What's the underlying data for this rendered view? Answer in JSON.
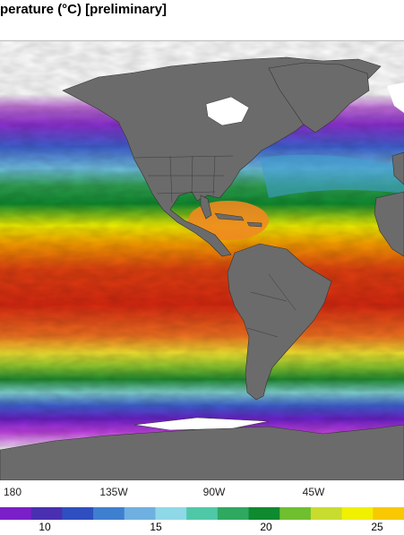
{
  "title": "perature (°C) [preliminary]",
  "map": {
    "longitude_labels": [
      "180",
      "135W",
      "90W",
      "45W"
    ],
    "colorbar": {
      "labels": [
        "10",
        "15",
        "20",
        "25"
      ],
      "colors": [
        "#7b1fc8",
        "#4a2fb0",
        "#2f4fc0",
        "#3f7fd0",
        "#6fb0e0",
        "#8fd8e8",
        "#4fc8a8",
        "#2fa860",
        "#0f8a2f",
        "#6fbf2f",
        "#c8dc2f",
        "#f0f000",
        "#f8c800"
      ]
    },
    "colors": {
      "ocean_cold": "#a020c8",
      "ocean_warm": "#d83010",
      "land": "#6b6b6b",
      "ice": "#ffffff"
    }
  }
}
